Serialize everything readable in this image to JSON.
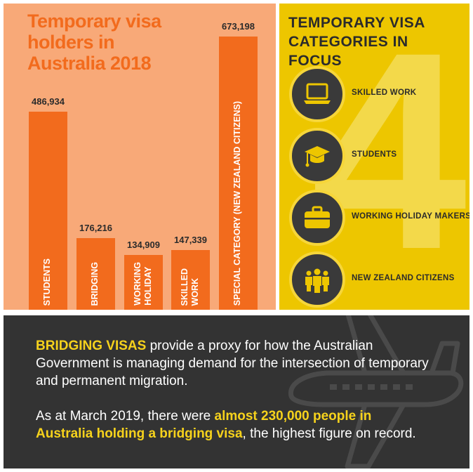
{
  "chart_data": {
    "type": "bar",
    "title": "Temporary visa holders in Australia 2018",
    "categories": [
      [
        "STUDENTS"
      ],
      [
        "BRIDGING"
      ],
      [
        "WORKING",
        "HOLIDAY"
      ],
      [
        "SKILLED",
        "WORK"
      ],
      [
        "SPECIAL CATEGORY (NEW ZEALAND CITIZENS)"
      ]
    ],
    "values": [
      486934,
      176216,
      134909,
      147339,
      673198
    ],
    "value_labels": [
      "486,934",
      "176,216",
      "134,909",
      "147,339",
      "673,198"
    ],
    "ylim": [
      0,
      700000
    ],
    "bar_color": "#f26b1d"
  },
  "focus": {
    "title": "TEMPORARY VISA CATEGORIES IN FOCUS",
    "big_number": "4",
    "categories": [
      {
        "label": "SKILLED WORK",
        "icon": "laptop-icon"
      },
      {
        "label": "STUDENTS",
        "icon": "graduation-cap-icon"
      },
      {
        "label": "WORKING HOLIDAY MAKERS",
        "icon": "briefcase-icon"
      },
      {
        "label": "NEW ZEALAND CITIZENS",
        "icon": "people-icon"
      }
    ]
  },
  "info": {
    "p1_highlight": "BRIDGING VISAS",
    "p1_text": " provide a proxy for how the Australian Government is managing demand for the intersection of temporary and permanent migration.",
    "p2_pre": "As at March 2019, there were ",
    "p2_highlight": "almost 230,000 people in Australia holding a bridging visa",
    "p2_post": ", the highest figure on record."
  },
  "colors": {
    "orange": "#f26b1d",
    "peach": "#f8a978",
    "yellow": "#edc600",
    "dark": "#333333",
    "highlight": "#f6d21c"
  }
}
